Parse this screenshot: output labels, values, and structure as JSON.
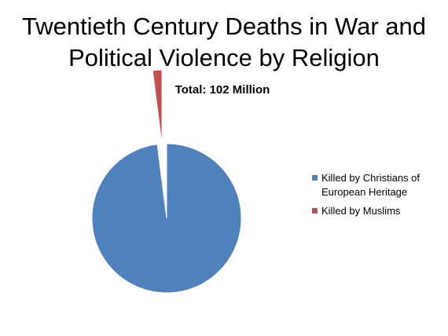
{
  "chart_data": {
    "type": "pie",
    "title_lines": [
      "Twentieth Century Deaths in War and",
      "Political Violence by Religion"
    ],
    "subtitle": "Total:  102 Million",
    "categories": [
      "Killed by Christians of European Heritage",
      "Killed by Muslims"
    ],
    "legend_labels": [
      [
        "Killed by Christians of",
        "European Heritage"
      ],
      [
        "Killed by Muslims"
      ]
    ],
    "values": [
      98.0,
      2.0
    ],
    "colors": [
      "#4f81bd",
      "#c0504d"
    ],
    "exploded": [
      false,
      true
    ],
    "legend_position": "right"
  }
}
